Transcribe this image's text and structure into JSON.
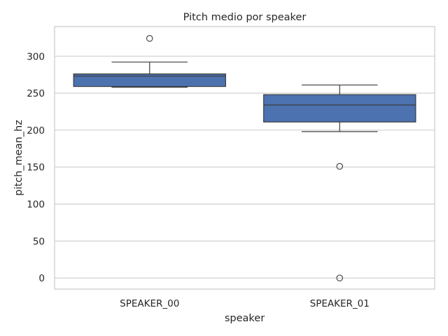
{
  "chart_data": {
    "type": "box",
    "title": "Pitch medio por speaker",
    "xlabel": "speaker",
    "ylabel": "pitch_mean_hz",
    "categories": [
      "SPEAKER_00",
      "SPEAKER_01"
    ],
    "ylim": [
      -15,
      340
    ],
    "yticks": [
      0,
      50,
      100,
      150,
      200,
      250,
      300
    ],
    "grid": true,
    "box_color": "#4c72b0",
    "boxes": [
      {
        "category": "SPEAKER_00",
        "whisker_low": 258,
        "q1": 259,
        "median": 273,
        "q3": 276,
        "whisker_high": 292,
        "outliers": [
          324
        ]
      },
      {
        "category": "SPEAKER_01",
        "whisker_low": 198,
        "q1": 211,
        "median": 234,
        "q3": 248,
        "whisker_high": 261,
        "outliers": [
          151,
          0
        ]
      }
    ]
  }
}
